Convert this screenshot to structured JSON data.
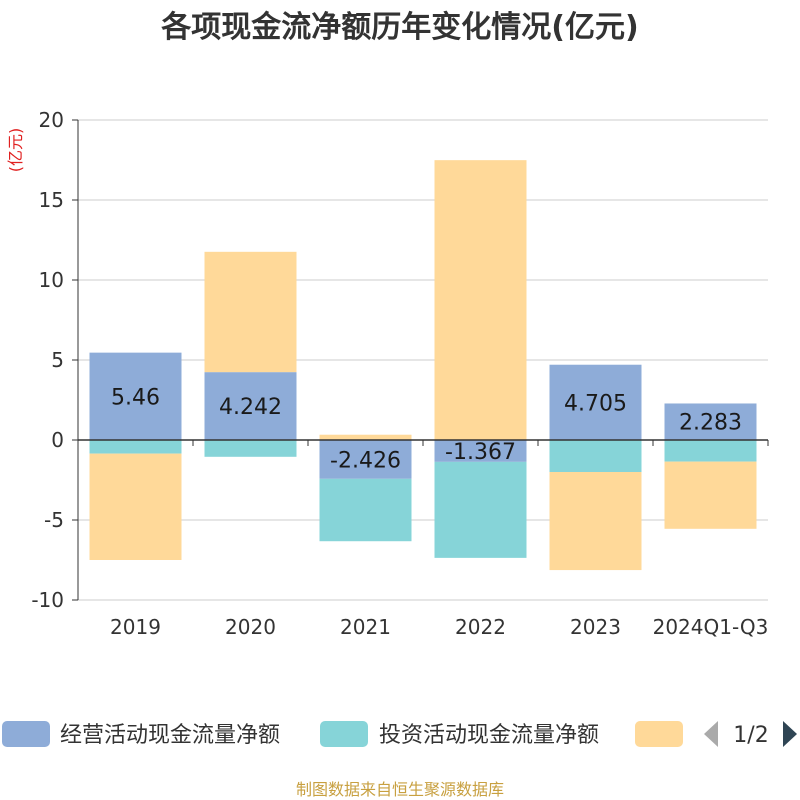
{
  "chart_data": {
    "type": "bar",
    "stacked": true,
    "title": "各项现金流净额历年变化情况(亿元)",
    "ylabel": "(亿元)",
    "xlabel": "",
    "categories": [
      "2019",
      "2020",
      "2021",
      "2022",
      "2023",
      "2024Q1-Q3"
    ],
    "ylim": [
      -10,
      20
    ],
    "yticks": [
      20,
      15,
      10,
      5,
      0,
      -5,
      -10
    ],
    "series": [
      {
        "name": "经营活动现金流量净额",
        "color": "#8eacd8",
        "values": [
          5.46,
          4.242,
          -2.426,
          -1.367,
          4.705,
          2.283
        ]
      },
      {
        "name": "投资活动现金流量净额",
        "color": "#86d4d8",
        "values": [
          -0.85,
          -1.05,
          -3.9,
          -6.0,
          -2.0,
          -1.35
        ]
      },
      {
        "name": "",
        "color": "#ffd999",
        "values": [
          -6.65,
          7.52,
          0.33,
          17.49,
          -6.13,
          -4.2
        ]
      }
    ],
    "data_labels": [
      "5.46",
      "4.242",
      "-2.426",
      "-1.367",
      "4.705",
      "2.283"
    ],
    "legend_position": "bottom",
    "grid": true
  },
  "legend": {
    "page_indicator": "1/2"
  },
  "source": "制图数据来自恒生聚源数据库"
}
